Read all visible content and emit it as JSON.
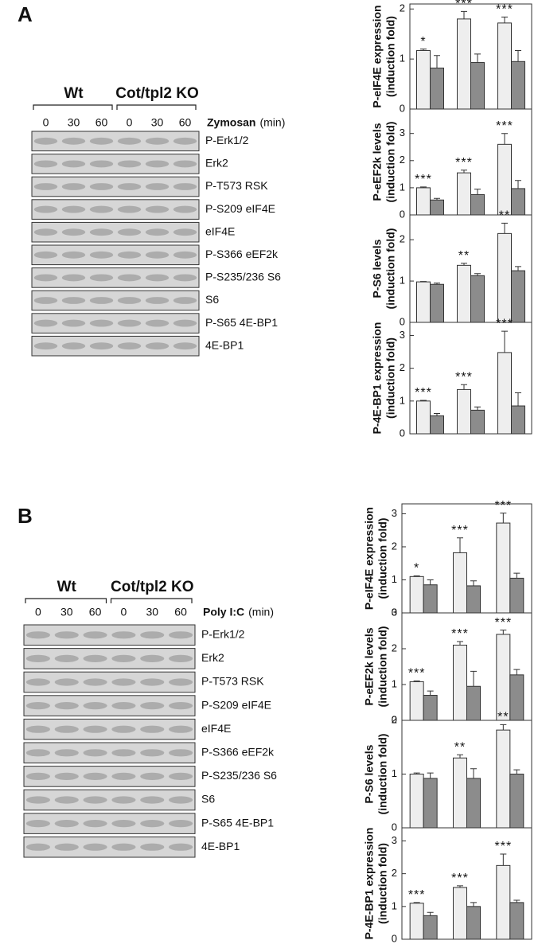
{
  "panels": [
    {
      "label": "A",
      "blot": {
        "groups": [
          "Wt",
          "Cot/tpl2 KO"
        ],
        "times": [
          "0",
          "30",
          "60",
          "0",
          "30",
          "60"
        ],
        "treatment": "Zymosan",
        "unit": "(min)",
        "rows": [
          "P-Erk1/2",
          "Erk2",
          "P-T573 RSK",
          "P-S209 eIF4E",
          "eIF4E",
          "P-S366 eEF2k",
          "P-S235/236 S6",
          "S6",
          "P-S65 4E-BP1",
          "4E-BP1"
        ]
      },
      "charts": [
        {
          "ylabel": [
            "P-eIF4E expression",
            "(induction fold)"
          ],
          "ylim": [
            0,
            2.1
          ],
          "yticks": [
            0,
            1,
            2
          ],
          "series": [
            {
              "color": "#eeeeee",
              "values": [
                1.17,
                1.8,
                1.72
              ],
              "errors": [
                0.03,
                0.15,
                0.12
              ]
            },
            {
              "color": "#8c8c8c",
              "values": [
                0.82,
                0.93,
                0.95
              ],
              "errors": [
                0.25,
                0.17,
                0.22
              ]
            }
          ],
          "significance": [
            "*",
            "***",
            "***"
          ]
        },
        {
          "ylabel": [
            "P-eEF2k levels",
            "(induction fold)"
          ],
          "ylim": [
            0,
            3.9
          ],
          "yticks": [
            0,
            1,
            2,
            3
          ],
          "series": [
            {
              "color": "#eeeeee",
              "values": [
                1.0,
                1.55,
                2.6
              ],
              "errors": [
                0.03,
                0.1,
                0.4
              ]
            },
            {
              "color": "#8c8c8c",
              "values": [
                0.55,
                0.75,
                0.97
              ],
              "errors": [
                0.06,
                0.2,
                0.3
              ]
            }
          ],
          "significance": [
            "***",
            "***",
            "***"
          ]
        },
        {
          "ylabel": [
            "P-S6 levels",
            "(induction fold)"
          ],
          "ylim": [
            0,
            2.6
          ],
          "yticks": [
            0,
            1,
            2
          ],
          "series": [
            {
              "color": "#eeeeee",
              "values": [
                0.98,
                1.38,
                2.15
              ],
              "errors": [
                0.01,
                0.05,
                0.25
              ]
            },
            {
              "color": "#8c8c8c",
              "values": [
                0.92,
                1.13,
                1.25
              ],
              "errors": [
                0.03,
                0.05,
                0.1
              ]
            }
          ],
          "significance": [
            null,
            "**",
            "**"
          ]
        },
        {
          "ylabel": [
            "P-4E-BP1 expression",
            "(induction fold)"
          ],
          "ylim": [
            0,
            3.4
          ],
          "yticks": [
            0,
            1,
            2,
            3
          ],
          "series": [
            {
              "color": "#eeeeee",
              "values": [
                1.0,
                1.35,
                2.48
              ],
              "errors": [
                0.02,
                0.15,
                0.65
              ]
            },
            {
              "color": "#8c8c8c",
              "values": [
                0.55,
                0.72,
                0.85
              ],
              "errors": [
                0.07,
                0.1,
                0.4
              ]
            }
          ],
          "significance": [
            "***",
            "***",
            "***"
          ]
        }
      ]
    },
    {
      "label": "B",
      "blot": {
        "groups": [
          "Wt",
          "Cot/tpl2 KO"
        ],
        "times": [
          "0",
          "30",
          "60",
          "0",
          "30",
          "60"
        ],
        "treatment": "Poly I:C",
        "unit": "(min)",
        "rows": [
          "P-Erk1/2",
          "Erk2",
          "P-T573 RSK",
          "P-S209 eIF4E",
          "eIF4E",
          "P-S366 eEF2k",
          "P-S235/236 S6",
          "S6",
          "P-S65 4E-BP1",
          "4E-BP1"
        ]
      },
      "charts": [
        {
          "ylabel": [
            "P-eIF4E expression",
            "(induction fold)"
          ],
          "ylim": [
            0,
            3.3
          ],
          "yticks": [
            0,
            1,
            2,
            3
          ],
          "series": [
            {
              "color": "#eeeeee",
              "values": [
                1.1,
                1.82,
                2.72
              ],
              "errors": [
                0.02,
                0.45,
                0.3
              ]
            },
            {
              "color": "#8c8c8c",
              "values": [
                0.85,
                0.82,
                1.05
              ],
              "errors": [
                0.15,
                0.15,
                0.15
              ]
            }
          ],
          "significance": [
            "*",
            "***",
            "***"
          ]
        },
        {
          "ylabel": [
            "P-eEF2k levels",
            "(induction fold)"
          ],
          "ylim": [
            0,
            3
          ],
          "yticks": [
            0,
            1,
            2,
            3
          ],
          "series": [
            {
              "color": "#eeeeee",
              "values": [
                1.08,
                2.1,
                2.4
              ],
              "errors": [
                0.02,
                0.1,
                0.12
              ]
            },
            {
              "color": "#8c8c8c",
              "values": [
                0.7,
                0.95,
                1.27
              ],
              "errors": [
                0.12,
                0.42,
                0.15
              ]
            }
          ],
          "significance": [
            "***",
            "***",
            "***"
          ]
        },
        {
          "ylabel": [
            "P-S6 levels",
            "(induction fold)"
          ],
          "ylim": [
            0,
            2
          ],
          "yticks": [
            0,
            1,
            2
          ],
          "series": [
            {
              "color": "#eeeeee",
              "values": [
                1.0,
                1.3,
                1.82
              ],
              "errors": [
                0.02,
                0.06,
                0.1
              ]
            },
            {
              "color": "#8c8c8c",
              "values": [
                0.92,
                0.92,
                1.0
              ],
              "errors": [
                0.1,
                0.18,
                0.08
              ]
            }
          ],
          "significance": [
            null,
            "**",
            "**"
          ]
        },
        {
          "ylabel": [
            "P-4E-BP1 expression",
            "(induction fold)"
          ],
          "ylim": [
            0,
            3.4
          ],
          "yticks": [
            0,
            1,
            2,
            3
          ],
          "series": [
            {
              "color": "#eeeeee",
              "values": [
                1.1,
                1.58,
                2.25
              ],
              "errors": [
                0.02,
                0.05,
                0.35
              ]
            },
            {
              "color": "#8c8c8c",
              "values": [
                0.72,
                1.0,
                1.12
              ],
              "errors": [
                0.1,
                0.12,
                0.07
              ]
            }
          ],
          "significance": [
            "***",
            "***",
            "***"
          ]
        }
      ]
    }
  ]
}
